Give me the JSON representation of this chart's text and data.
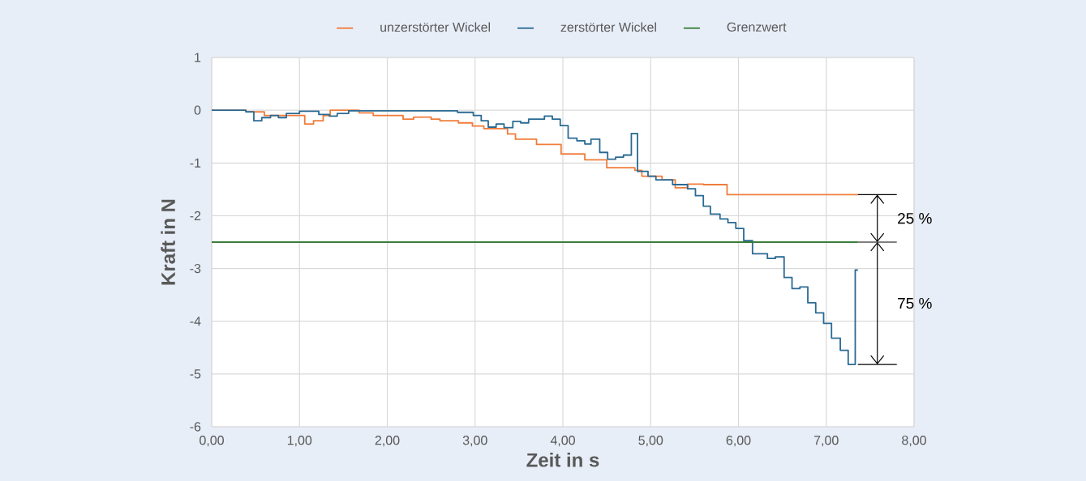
{
  "chart_data": {
    "type": "step",
    "xlabel": "Zeit in s",
    "ylabel": "Kraft in N",
    "xlim": [
      0,
      8
    ],
    "ylim": [
      -6,
      1
    ],
    "xticks": [
      {
        "value": 0,
        "label": "0,00"
      },
      {
        "value": 1,
        "label": "1,00"
      },
      {
        "value": 2,
        "label": "2,00"
      },
      {
        "value": 3,
        "label": "3,00"
      },
      {
        "value": 4,
        "label": "4,00"
      },
      {
        "value": 5,
        "label": "5,00"
      },
      {
        "value": 6,
        "label": "6,00"
      },
      {
        "value": 7,
        "label": "7,00"
      },
      {
        "value": 8,
        "label": "8,00"
      }
    ],
    "yticks": [
      -6,
      -5,
      -4,
      -3,
      -2,
      -1,
      0,
      1
    ],
    "grid": true,
    "legend": "top",
    "marker": "none",
    "line_style": "solid",
    "series": [
      {
        "name": "unzerstörter Wickel",
        "color": "#f07c3a",
        "x": [
          0,
          0.39,
          0.6,
          1.06,
          1.16,
          1.27,
          1.35,
          1.68,
          1.84,
          2.18,
          2.3,
          2.5,
          2.6,
          2.81,
          2.97,
          3.1,
          3.37,
          3.46,
          3.7,
          3.98,
          4.25,
          4.5,
          4.82,
          4.9,
          5.13,
          5.28,
          5.42,
          5.6,
          5.87,
          7.36
        ],
        "values": [
          0,
          -0.03,
          -0.1,
          -0.26,
          -0.2,
          -0.1,
          0,
          -0.05,
          -0.1,
          -0.17,
          -0.13,
          -0.17,
          -0.2,
          -0.24,
          -0.3,
          -0.35,
          -0.45,
          -0.55,
          -0.65,
          -0.83,
          -0.94,
          -1.09,
          -1.14,
          -1.25,
          -1.32,
          -1.47,
          -1.4,
          -1.41,
          -1.6,
          -1.6
        ]
      },
      {
        "name": "zerstörter Wickel",
        "color": "#2a6a94",
        "x": [
          0,
          0.39,
          0.48,
          0.57,
          0.67,
          0.76,
          0.85,
          1.0,
          1.22,
          1.34,
          1.43,
          1.56,
          2.8,
          2.98,
          3.07,
          3.15,
          3.24,
          3.33,
          3.43,
          3.52,
          3.61,
          3.79,
          3.88,
          3.97,
          4.06,
          4.16,
          4.25,
          4.32,
          4.42,
          4.51,
          4.6,
          4.69,
          4.78,
          4.85,
          4.97,
          5.06,
          5.25,
          5.42,
          5.51,
          5.6,
          5.68,
          5.79,
          5.88,
          5.97,
          6.06,
          6.16,
          6.33,
          6.42,
          6.52,
          6.61,
          6.7,
          6.79,
          6.88,
          6.97,
          7.06,
          7.16,
          7.25,
          7.33,
          7.36
        ],
        "values": [
          0,
          -0.03,
          -0.2,
          -0.14,
          -0.1,
          -0.14,
          -0.06,
          -0.02,
          -0.08,
          -0.11,
          -0.06,
          -0.01,
          -0.04,
          -0.1,
          -0.2,
          -0.32,
          -0.26,
          -0.33,
          -0.21,
          -0.24,
          -0.17,
          -0.11,
          -0.17,
          -0.29,
          -0.53,
          -0.58,
          -0.64,
          -0.55,
          -0.8,
          -0.93,
          -0.89,
          -0.85,
          -0.44,
          -1.16,
          -1.25,
          -1.32,
          -1.41,
          -1.49,
          -1.62,
          -1.82,
          -1.97,
          -2.06,
          -2.13,
          -2.24,
          -2.47,
          -2.72,
          -2.81,
          -2.78,
          -3.17,
          -3.38,
          -3.35,
          -3.65,
          -3.84,
          -4.04,
          -4.32,
          -4.55,
          -4.82,
          -3.03,
          -3.03
        ]
      },
      {
        "name": "Grenzwert",
        "color": "#3b7d3b",
        "type": "line",
        "x": [
          0,
          7.36
        ],
        "values": [
          -2.5,
          -2.5
        ]
      }
    ],
    "annotations": [
      {
        "text": "25 %",
        "x": 7.36,
        "y": -1.6
      },
      "75 %"
    ]
  }
}
